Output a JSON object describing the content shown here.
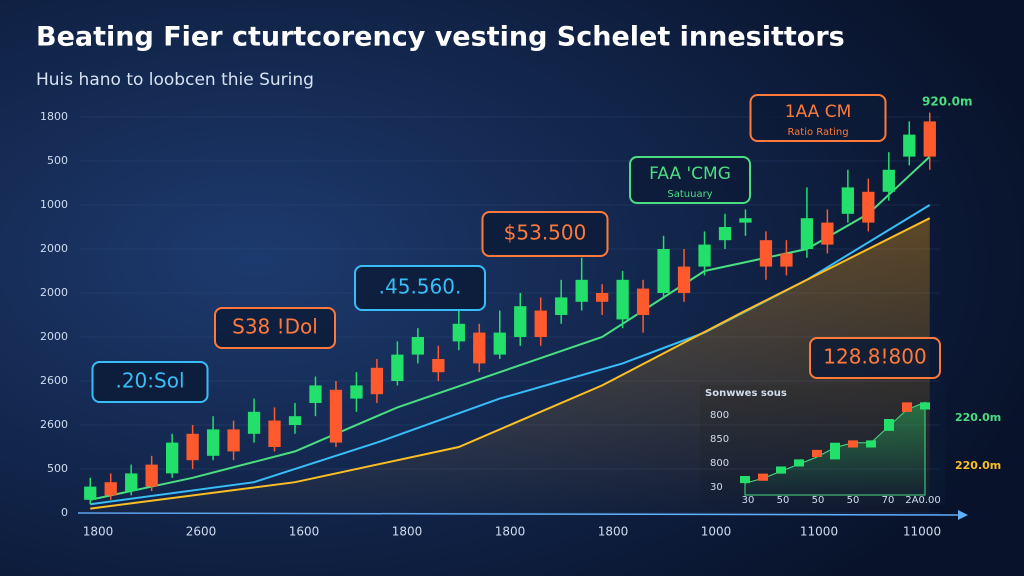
{
  "chart_data": {
    "type": "candlestick",
    "title": "Beating Fier cturtcorency vesting Schelet innesittors",
    "subtitle": "Huis hano to loobcen thie Suring",
    "up_color": "#22e06a",
    "down_color": "#ff5a2e",
    "xlim": [
      -0.5,
      41.5
    ],
    "ylim": [
      0,
      9
    ],
    "yticks": [
      {
        "value": 0,
        "label": "0"
      },
      {
        "value": 1,
        "label": "500"
      },
      {
        "value": 2,
        "label": "2600"
      },
      {
        "value": 3,
        "label": "2600"
      },
      {
        "value": 4,
        "label": "2000"
      },
      {
        "value": 5,
        "label": "2000"
      },
      {
        "value": 6,
        "label": "2000"
      },
      {
        "value": 7,
        "label": "1000"
      },
      {
        "value": 8,
        "label": "500"
      },
      {
        "value": 9,
        "label": "1800"
      }
    ],
    "x_labels": [
      "1800",
      "2600",
      "1600",
      "1800",
      "1800",
      "1800",
      "1000",
      "11000",
      "11000"
    ],
    "open": [
      0.3,
      0.7,
      0.5,
      1.1,
      0.9,
      1.8,
      1.3,
      1.9,
      1.8,
      2.1,
      2.0,
      2.5,
      2.8,
      2.6,
      3.3,
      3.0,
      3.6,
      3.5,
      3.9,
      4.1,
      3.6,
      4.0,
      4.6,
      4.5,
      4.8,
      5.0,
      4.4,
      5.1,
      5.0,
      5.6,
      5.6,
      6.2,
      6.6,
      6.2,
      5.9,
      6.0,
      6.6,
      6.8,
      7.3,
      7.3,
      8.1,
      8.9
    ],
    "close": [
      0.6,
      0.4,
      0.9,
      0.6,
      1.6,
      1.2,
      1.9,
      1.4,
      2.3,
      1.5,
      2.2,
      2.9,
      1.6,
      2.9,
      2.7,
      3.6,
      4.0,
      3.2,
      4.3,
      3.4,
      4.1,
      4.7,
      4.0,
      4.9,
      5.3,
      4.8,
      5.3,
      4.5,
      6.0,
      5.0,
      6.1,
      6.5,
      6.7,
      5.6,
      5.6,
      6.7,
      6.1,
      7.4,
      6.6,
      7.8,
      8.6,
      8.1
    ],
    "high": [
      0.8,
      0.9,
      1.1,
      1.3,
      1.8,
      2.0,
      2.2,
      2.1,
      2.6,
      2.4,
      2.5,
      3.1,
      3.0,
      3.2,
      3.5,
      3.9,
      4.2,
      3.8,
      4.6,
      4.3,
      4.6,
      5.0,
      4.9,
      5.3,
      5.8,
      5.2,
      5.5,
      5.3,
      6.3,
      6.0,
      6.4,
      6.8,
      6.9,
      6.4,
      6.2,
      7.4,
      6.9,
      7.8,
      7.6,
      8.2,
      8.9,
      9.1
    ],
    "low": [
      0.2,
      0.3,
      0.4,
      0.5,
      0.8,
      1.0,
      1.2,
      1.2,
      1.6,
      1.4,
      1.8,
      2.2,
      1.5,
      2.3,
      2.5,
      2.9,
      3.4,
      3.0,
      3.7,
      3.2,
      3.5,
      3.8,
      3.8,
      4.3,
      4.6,
      4.5,
      4.2,
      4.1,
      4.9,
      4.8,
      5.4,
      6.0,
      6.3,
      5.3,
      5.4,
      5.8,
      5.9,
      6.6,
      6.4,
      7.1,
      7.9,
      7.8
    ],
    "lines": [
      {
        "color": "#4ade80",
        "x": [
          0,
          5,
          10,
          15,
          20,
          25,
          30,
          35,
          38,
          41
        ],
        "values": [
          0.3,
          0.8,
          1.4,
          2.4,
          3.2,
          4.0,
          5.5,
          6.0,
          6.8,
          8.1
        ]
      },
      {
        "color": "#38bdf8",
        "x": [
          0,
          8,
          14,
          20,
          26,
          30,
          35,
          41
        ],
        "values": [
          0.2,
          0.7,
          1.6,
          2.6,
          3.4,
          4.1,
          5.3,
          7.0
        ]
      },
      {
        "color": "#fbbf24",
        "x": [
          0,
          10,
          18,
          25,
          32,
          41
        ],
        "values": [
          0.1,
          0.7,
          1.5,
          2.9,
          4.6,
          6.7
        ]
      }
    ],
    "annotations": [
      {
        "text": ".20:Sol",
        "color": "#38bdf8"
      },
      {
        "text": "S38 !Dol",
        "color": "#ff7a3a"
      },
      {
        "text": ".45.560.",
        "color": "#38bdf8"
      },
      {
        "text": "$53.500",
        "color": "#ff7a3a"
      },
      {
        "text": "FAA 'CMG",
        "subtext": "Satuuary",
        "color": "#4ade80"
      },
      {
        "text": "1AA CM",
        "subtext": "Ratio Rating",
        "color": "#ff7a3a"
      },
      {
        "text": "128.8!800",
        "color": "#ff7a3a"
      }
    ],
    "corner_label": "920.0m",
    "inset": {
      "title": "Sonwwes sous",
      "ylim": [
        0,
        4
      ],
      "y_labels": [
        "800",
        "850",
        "800",
        "30"
      ],
      "x_labels": [
        "30",
        "50",
        "50",
        "50",
        "70",
        "2A0.00"
      ],
      "open": [
        0.5,
        0.9,
        0.9,
        1.2,
        1.9,
        1.5,
        2.3,
        2.0,
        2.7,
        3.9,
        3.6
      ],
      "close": [
        0.8,
        0.6,
        1.2,
        1.5,
        1.6,
        2.2,
        2.0,
        2.3,
        3.2,
        3.5,
        3.9
      ],
      "area": [
        0.5,
        0.7,
        1.0,
        1.3,
        1.6,
        2.0,
        2.2,
        2.2,
        2.9,
        3.6,
        3.9
      ],
      "side_labels": [
        {
          "text": "220.0m",
          "color": "#4ade80"
        },
        {
          "text": "220.0m",
          "color": "#fbbf24"
        }
      ]
    }
  }
}
